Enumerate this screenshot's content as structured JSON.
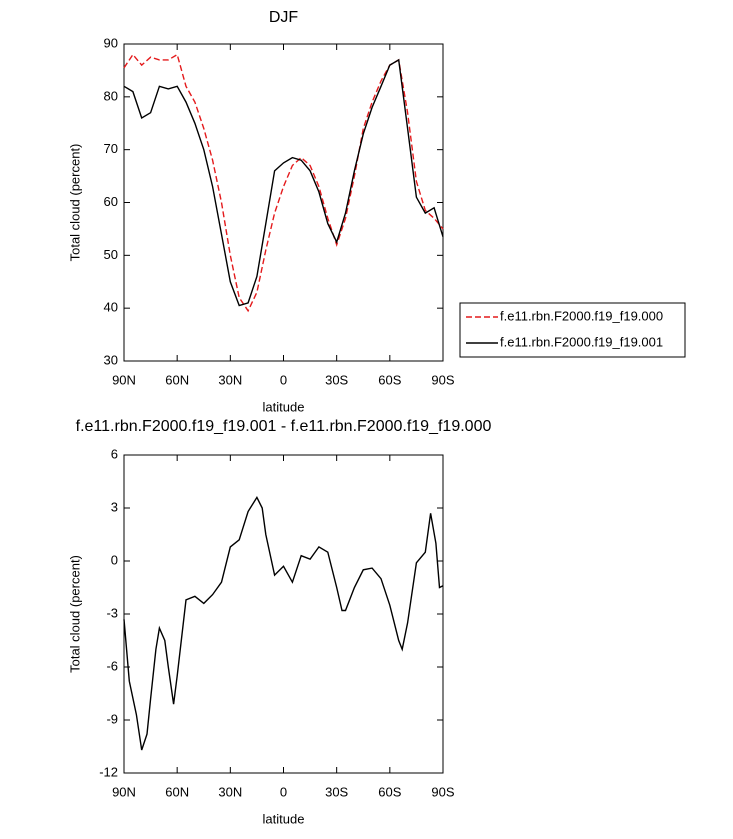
{
  "chart_data": [
    {
      "type": "line",
      "title": "DJF",
      "xlabel": "latitude",
      "ylabel": "Total cloud (percent)",
      "x": [
        90,
        85,
        80,
        75,
        70,
        65,
        60,
        55,
        50,
        45,
        40,
        35,
        30,
        25,
        20,
        15,
        10,
        5,
        0,
        -5,
        -10,
        -15,
        -20,
        -25,
        -30,
        -35,
        -40,
        -45,
        -50,
        -55,
        -60,
        -65,
        -70,
        -75,
        -80,
        -85,
        -90
      ],
      "series": [
        {
          "name": "f.e11.rbn.F2000.f19_f19.000",
          "color": "#e41a1c",
          "dashed": true,
          "values": [
            85.5,
            88,
            86,
            87.5,
            87,
            87,
            88,
            82,
            79,
            74,
            68,
            60,
            50,
            42,
            39.5,
            43,
            51,
            58,
            63,
            67,
            68.5,
            67,
            63,
            57,
            52,
            57,
            65,
            74,
            79,
            83,
            86,
            87,
            77,
            64,
            58.5,
            57,
            55
          ]
        },
        {
          "name": "f.e11.rbn.F2000.f19_f19.001",
          "color": "#000000",
          "dashed": false,
          "values": [
            82,
            81,
            76,
            77,
            82,
            81.5,
            82,
            79,
            75,
            70,
            63,
            54,
            45,
            40.5,
            41,
            46,
            56,
            66,
            67.5,
            68.5,
            68,
            66,
            62,
            56,
            52.5,
            58,
            66,
            73,
            78,
            82,
            86,
            87,
            74,
            61,
            58,
            59,
            53.5
          ]
        }
      ],
      "xlim": [
        90,
        -90
      ],
      "xticks": [
        {
          "value": 90,
          "label": "90N"
        },
        {
          "value": 60,
          "label": "60N"
        },
        {
          "value": 30,
          "label": "30N"
        },
        0,
        {
          "value": -30,
          "label": "30S"
        },
        {
          "value": -60,
          "label": "60S"
        },
        {
          "value": -90,
          "label": "90S"
        }
      ],
      "ylim": [
        30,
        90
      ],
      "yticks": [
        30,
        40,
        50,
        60,
        70,
        80,
        90
      ],
      "legend": "right"
    },
    {
      "type": "line",
      "title": "f.e11.rbn.F2000.f19_f19.001 - f.e11.rbn.F2000.f19_f19.000",
      "xlabel": "latitude",
      "ylabel": "Total cloud (percent)",
      "x": [
        90,
        87,
        83,
        80,
        77,
        75,
        72,
        70,
        67,
        65,
        62,
        60,
        55,
        50,
        45,
        40,
        35,
        30,
        25,
        20,
        15,
        12,
        10,
        5,
        0,
        -5,
        -10,
        -15,
        -20,
        -25,
        -30,
        -33,
        -35,
        -40,
        -45,
        -50,
        -55,
        -60,
        -65,
        -67,
        -70,
        -75,
        -80,
        -83,
        -86,
        -88,
        -90
      ],
      "values": [
        -3.3,
        -6.8,
        -8.7,
        -10.7,
        -9.8,
        -7.8,
        -5,
        -3.8,
        -4.5,
        -6,
        -8.1,
        -6.5,
        -2.2,
        -2,
        -2.4,
        -1.9,
        -1.2,
        0.8,
        1.2,
        2.8,
        3.6,
        3,
        1.5,
        -0.8,
        -0.3,
        -1.2,
        0.3,
        0.1,
        0.8,
        0.5,
        -1.5,
        -2.8,
        -2.8,
        -1.5,
        -0.5,
        -0.4,
        -1,
        -2.5,
        -4.5,
        -5,
        -3.5,
        -0.1,
        0.5,
        2.7,
        1,
        -1.5,
        -1.4
      ],
      "color": "#000000",
      "xlim": [
        90,
        -90
      ],
      "xticks": [
        {
          "value": 90,
          "label": "90N"
        },
        {
          "value": 60,
          "label": "60N"
        },
        {
          "value": 30,
          "label": "30N"
        },
        0,
        {
          "value": -30,
          "label": "30S"
        },
        {
          "value": -60,
          "label": "60S"
        },
        {
          "value": -90,
          "label": "90S"
        }
      ],
      "ylim": [
        -12,
        6
      ],
      "yticks": [
        -12,
        -9,
        -6,
        -3,
        0,
        3,
        6
      ]
    }
  ]
}
